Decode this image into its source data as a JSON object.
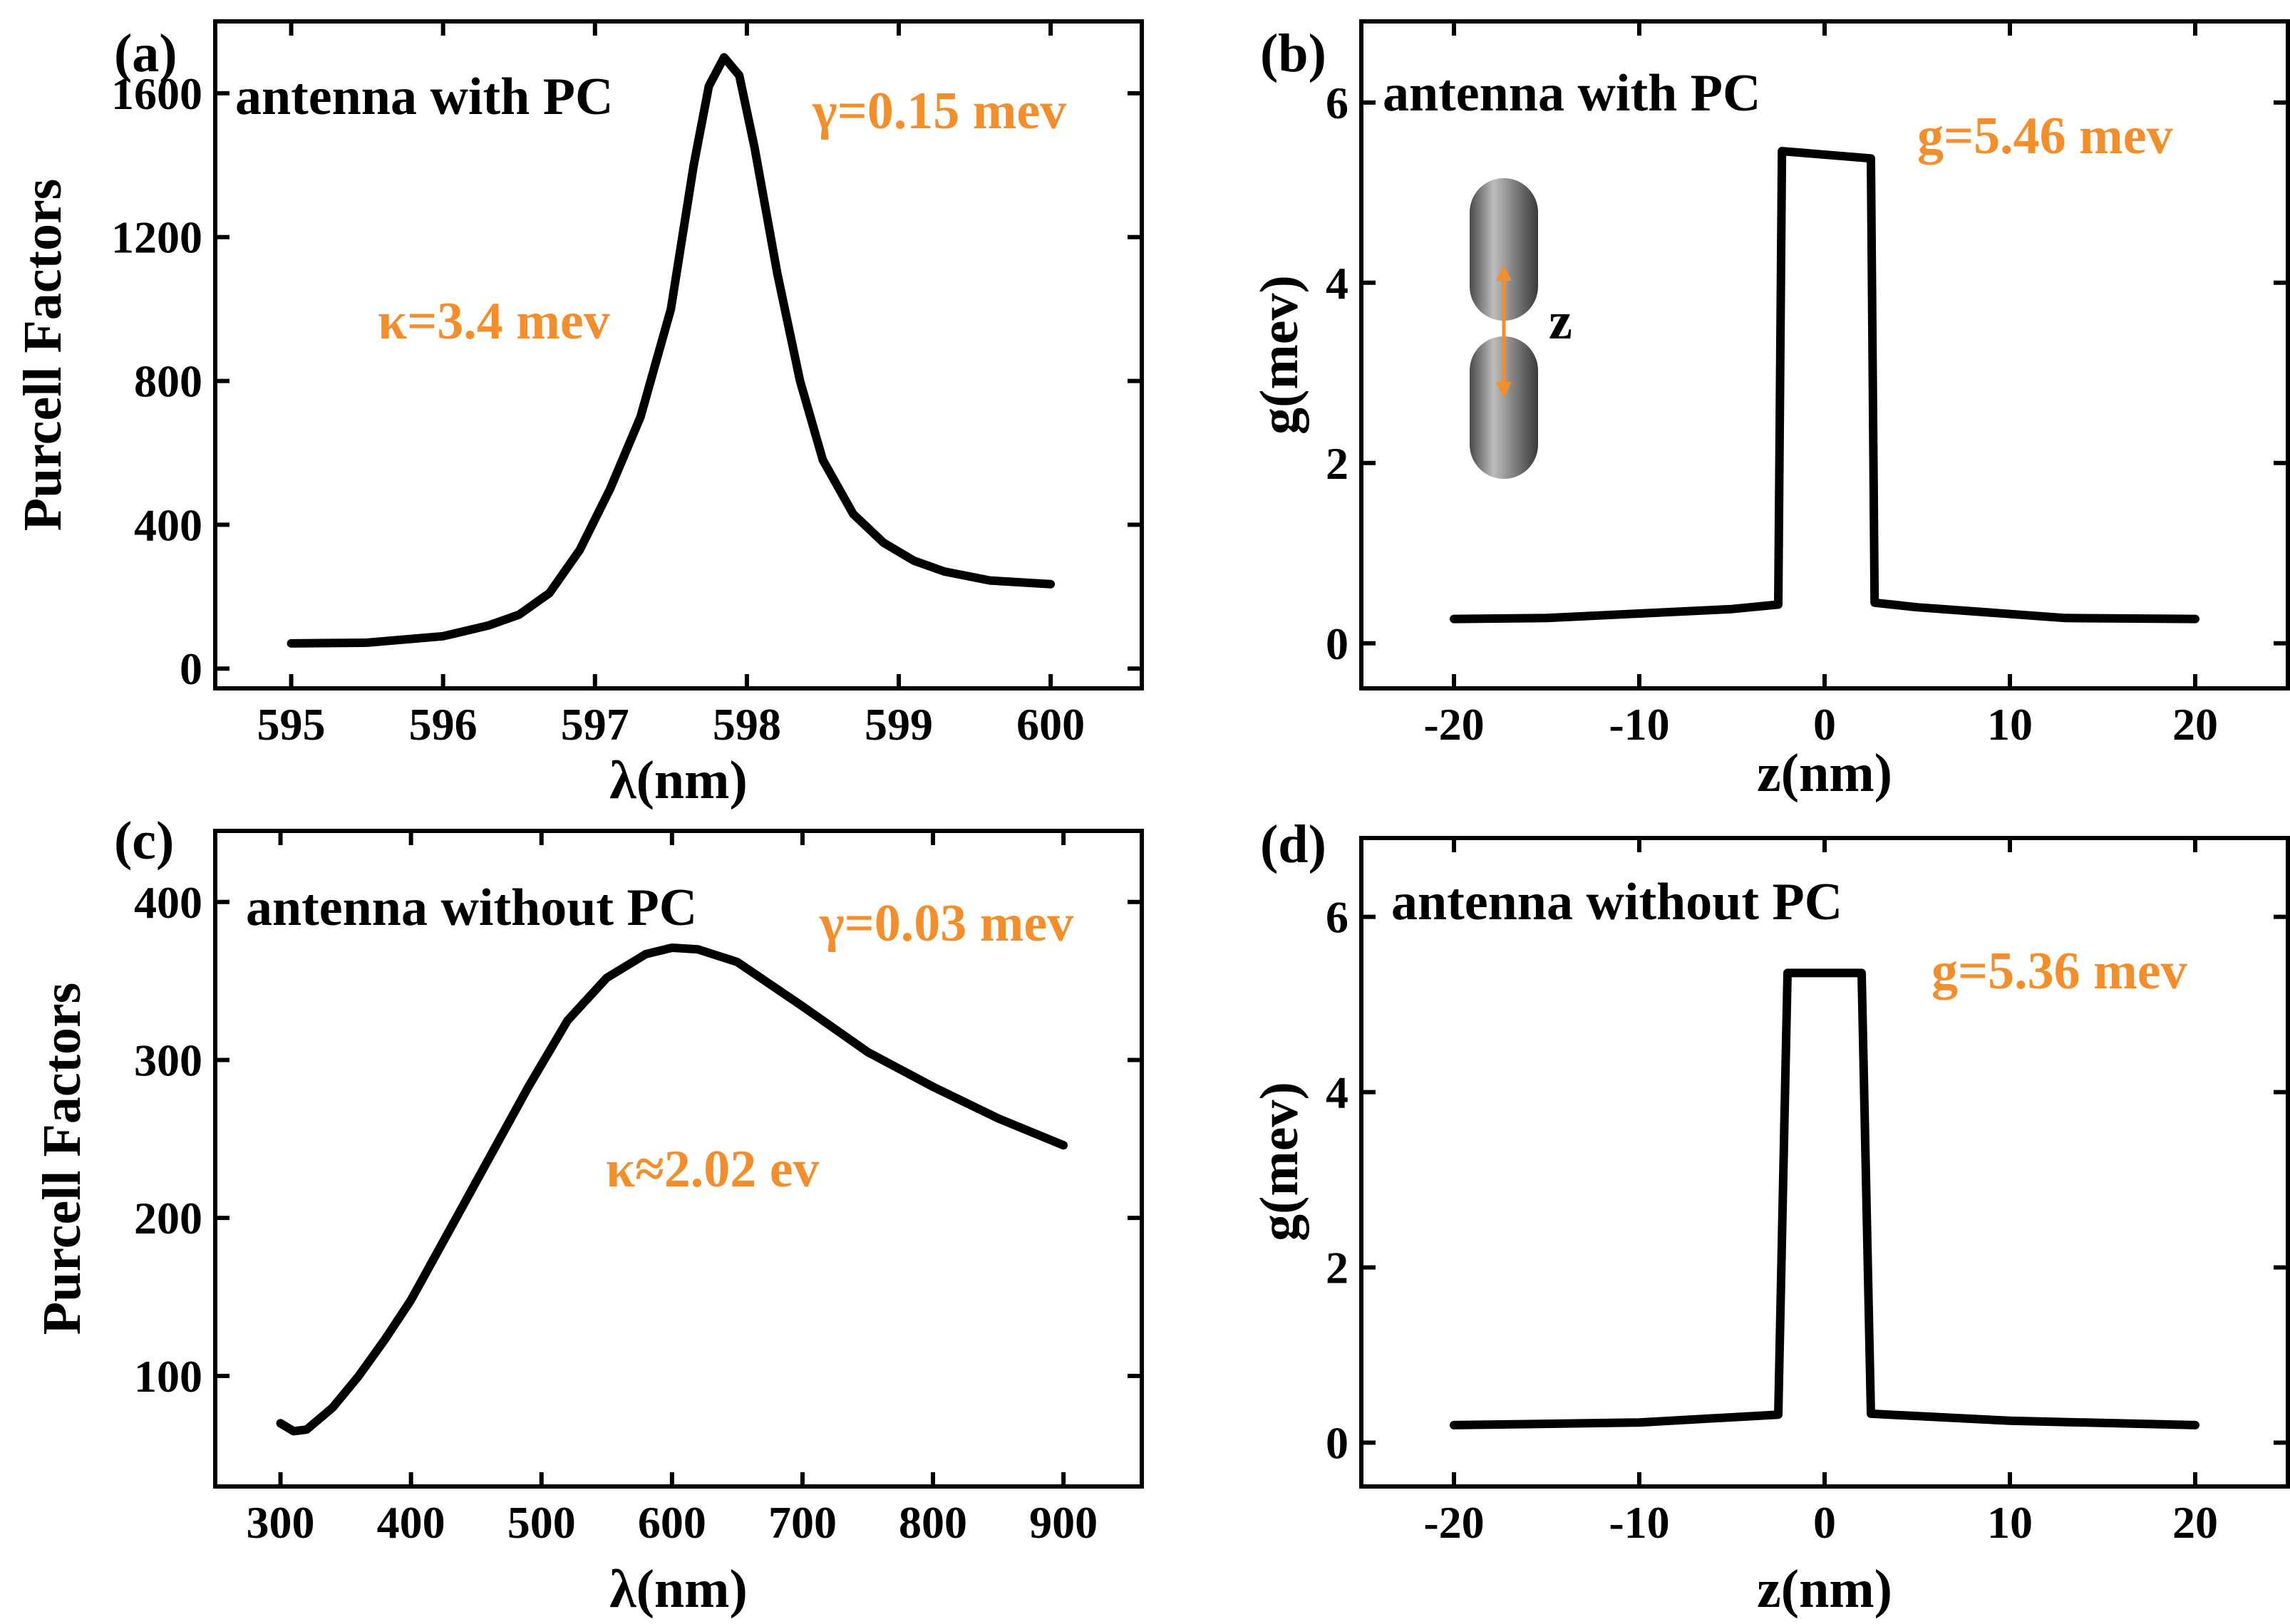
{
  "colors": {
    "annotation": "#f28e2b",
    "line": "#000000"
  },
  "chart_data": [
    {
      "panel": "(a)",
      "type": "line",
      "title": "antenna with PC",
      "xlabel": "λ(nm)",
      "ylabel": "Purcell Factors",
      "xlim": [
        594.5,
        600.6
      ],
      "ylim": [
        -55,
        1800
      ],
      "xticks": [
        595,
        596,
        597,
        598,
        599,
        600
      ],
      "xtick_labels": [
        "595",
        "596",
        "597",
        "598",
        "599",
        "600"
      ],
      "yticks": [
        0,
        400,
        800,
        1200,
        1600
      ],
      "ytick_labels": [
        "0",
        "400",
        "800",
        "1200",
        "1600"
      ],
      "annotations": [
        "γ=0.15 mev",
        "κ=3.4 mev"
      ],
      "series": [
        {
          "name": "Purcell factor",
          "x": [
            595,
            595.5,
            596,
            596.3,
            596.5,
            596.7,
            596.9,
            597.1,
            597.3,
            597.5,
            597.65,
            597.75,
            597.85,
            597.95,
            598.05,
            598.2,
            598.35,
            598.5,
            598.7,
            598.9,
            599.1,
            599.3,
            599.6,
            600
          ],
          "y": [
            70,
            72,
            90,
            120,
            150,
            210,
            330,
            500,
            700,
            1000,
            1400,
            1620,
            1700,
            1650,
            1450,
            1100,
            800,
            580,
            430,
            350,
            300,
            270,
            245,
            235
          ]
        }
      ]
    },
    {
      "panel": "(b)",
      "type": "line",
      "title": "antenna with PC",
      "xlabel": "z(nm)",
      "ylabel": "g(mev)",
      "xlim": [
        -25,
        25
      ],
      "ylim": [
        -0.5,
        6.9
      ],
      "xticks": [
        -20,
        -10,
        0,
        10,
        20
      ],
      "xtick_labels": [
        "-20",
        "-10",
        "0",
        "10",
        "20"
      ],
      "yticks": [
        0,
        2,
        4,
        6
      ],
      "ytick_labels": [
        "0",
        "2",
        "4",
        "6"
      ],
      "annotations": [
        "g=5.46 mev"
      ],
      "inset_label": "z",
      "series": [
        {
          "name": "g",
          "x": [
            -20,
            -15,
            -10,
            -5,
            -2.5,
            -2.3,
            2.5,
            2.7,
            5,
            13,
            20
          ],
          "y": [
            0.27,
            0.28,
            0.33,
            0.38,
            0.43,
            5.46,
            5.38,
            0.45,
            0.4,
            0.28,
            0.27
          ]
        }
      ]
    },
    {
      "panel": "(c)",
      "type": "line",
      "title": "antenna without PC",
      "xlabel": "λ(nm)",
      "ylabel": "Purcell Factors",
      "xlim": [
        250,
        960
      ],
      "ylim": [
        30,
        445
      ],
      "xticks": [
        300,
        400,
        500,
        600,
        700,
        800,
        900
      ],
      "xtick_labels": [
        "300",
        "400",
        "500",
        "600",
        "700",
        "800",
        "900"
      ],
      "yticks": [
        100,
        200,
        300,
        400
      ],
      "ytick_labels": [
        "100",
        "200",
        "300",
        "400"
      ],
      "annotations": [
        "γ=0.03 mev",
        "κ≈2.02 ev"
      ],
      "series": [
        {
          "name": "Purcell factor",
          "x": [
            300,
            310,
            320,
            340,
            360,
            380,
            400,
            430,
            460,
            490,
            520,
            550,
            580,
            600,
            620,
            650,
            700,
            750,
            800,
            850,
            900
          ],
          "y": [
            70,
            65,
            66,
            80,
            100,
            123,
            148,
            193,
            238,
            283,
            325,
            352,
            367,
            371,
            370,
            362,
            334,
            305,
            283,
            263,
            246
          ]
        }
      ]
    },
    {
      "panel": "(d)",
      "type": "line",
      "title": "antenna without PC",
      "xlabel": "z(nm)",
      "ylabel": "g(mev)",
      "xlim": [
        -25,
        25
      ],
      "ylim": [
        -0.5,
        6.9
      ],
      "xticks": [
        -20,
        -10,
        0,
        10,
        20
      ],
      "xtick_labels": [
        "-20",
        "-10",
        "0",
        "10",
        "20"
      ],
      "yticks": [
        0,
        2,
        4,
        6
      ],
      "ytick_labels": [
        "0",
        "2",
        "4",
        "6"
      ],
      "annotations": [
        "g=5.36 mev"
      ],
      "series": [
        {
          "name": "g",
          "x": [
            -20,
            -10,
            -2.5,
            -2,
            2,
            2.5,
            10,
            20
          ],
          "y": [
            0.2,
            0.23,
            0.32,
            5.36,
            5.36,
            0.33,
            0.25,
            0.2
          ]
        }
      ]
    }
  ]
}
